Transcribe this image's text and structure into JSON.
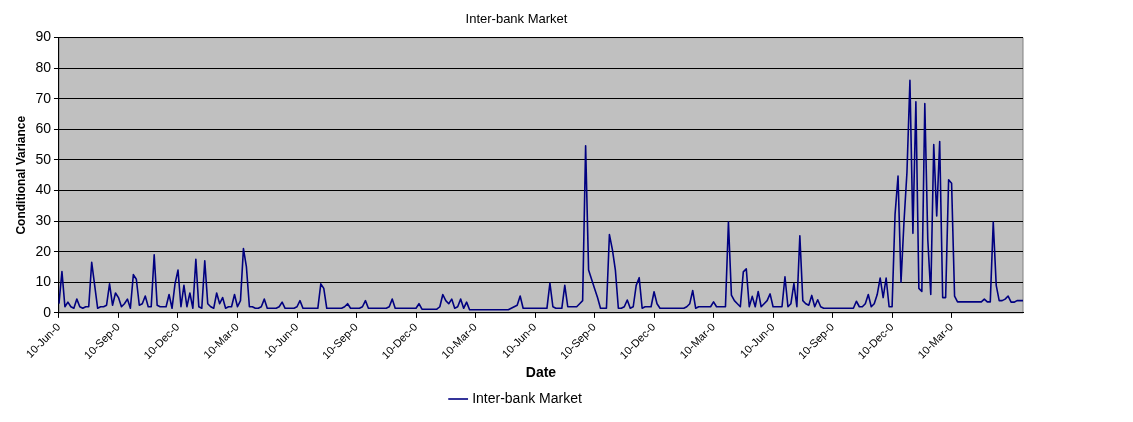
{
  "chart_data": {
    "type": "line",
    "title": "Inter-bank Market",
    "xlabel": "Date",
    "ylabel": "Conditional Variance",
    "categories": [
      "10-Jun-0",
      null,
      null,
      null,
      null,
      null,
      null,
      null,
      null,
      null,
      null,
      null,
      null,
      null,
      null,
      null,
      null,
      null,
      null,
      null,
      "10-Sep-0",
      null,
      null,
      null,
      null,
      null,
      null,
      null,
      null,
      null,
      null,
      null,
      null,
      null,
      null,
      null,
      null,
      null,
      null,
      null,
      "10-Dec-0",
      null,
      null,
      null,
      null,
      null,
      null,
      null,
      null,
      null,
      null,
      null,
      null,
      null,
      null,
      null,
      null,
      null,
      null,
      null,
      "10-Mar-0",
      null,
      null,
      null,
      null,
      null,
      null,
      null,
      null,
      null,
      null,
      null,
      null,
      null,
      null,
      null,
      null,
      null,
      null,
      null,
      "10-Jun-0",
      null,
      null,
      null,
      null,
      null,
      null,
      null,
      null,
      null,
      null,
      null,
      null,
      null,
      null,
      null,
      null,
      null,
      null,
      null,
      "10-Sep-0",
      null,
      null,
      null,
      null,
      null,
      null,
      null,
      null,
      null,
      null,
      null,
      null,
      null,
      null,
      null,
      null,
      null,
      null,
      null,
      "10-Dec-0",
      null,
      null,
      null,
      null,
      null,
      null,
      null,
      null,
      null,
      null,
      null,
      null,
      null,
      null,
      null,
      null,
      null,
      null,
      null,
      "10-Mar-0",
      null,
      null,
      null,
      null,
      null,
      null,
      null,
      null,
      null,
      null,
      null,
      null,
      null,
      null,
      null,
      null,
      null,
      null,
      null,
      "10-Jun-0",
      null,
      null,
      null,
      null,
      null,
      null,
      null,
      null,
      null,
      null,
      null,
      null,
      null,
      null,
      null,
      null,
      null,
      null,
      null,
      "10-Sep-0",
      null,
      null,
      null,
      null,
      null,
      null,
      null,
      null,
      null,
      null,
      null,
      null,
      null,
      null,
      null,
      null,
      null,
      null,
      null,
      "10-Dec-0",
      null,
      null,
      null,
      null,
      null,
      null,
      null,
      null,
      null,
      null,
      null,
      null,
      null,
      null,
      null,
      null,
      null,
      null,
      null,
      "10-Mar-0",
      null,
      null,
      null,
      null,
      null,
      null,
      null,
      null,
      null,
      null,
      null,
      null,
      null,
      null,
      null,
      null,
      null,
      null,
      null,
      "10-Jun-0",
      null,
      null,
      null,
      null,
      null,
      null,
      null,
      null,
      null,
      null,
      null,
      null,
      null,
      null,
      null,
      null,
      null,
      null,
      null,
      "10-Sep-0",
      null,
      null,
      null,
      null,
      null,
      null,
      null,
      null,
      null,
      null,
      null,
      null,
      null,
      null,
      null,
      null,
      null,
      null,
      null,
      "10-Dec-0",
      null,
      null,
      null,
      null,
      null,
      null,
      null,
      null,
      null,
      null,
      null,
      null,
      null,
      null,
      null,
      null,
      null,
      null,
      null,
      "10-Mar-0",
      null,
      null,
      null,
      null,
      null,
      null,
      null,
      null,
      null,
      null,
      null,
      null,
      null,
      null,
      null,
      null,
      null,
      null,
      null,
      null,
      null,
      null,
      null,
      null
    ],
    "ylim": [
      0,
      90
    ],
    "yticks": [
      0,
      10,
      20,
      30,
      40,
      50,
      60,
      70,
      80,
      90
    ],
    "grid": "y",
    "legend": "bottom",
    "marker": "none",
    "line_style": "solid",
    "series": [
      {
        "name": "Inter-bank Market",
        "color": "#000080",
        "values": [
          3,
          13.5,
          2,
          3.5,
          2,
          1.5,
          4.5,
          2,
          1.5,
          2,
          2,
          16.5,
          9,
          1.5,
          2,
          2,
          2.5,
          9.5,
          2.5,
          6.5,
          5,
          2,
          3,
          4.5,
          1.5,
          12.5,
          11,
          2.5,
          3,
          5.5,
          2,
          2,
          19,
          2.5,
          2,
          2,
          2,
          6,
          1.5,
          9.5,
          14,
          2,
          9,
          2,
          6.5,
          1.5,
          17.5,
          2,
          1.5,
          17,
          3,
          2,
          1.5,
          6.5,
          3,
          5,
          1.5,
          2,
          2,
          6,
          2,
          4,
          21,
          15,
          2,
          2,
          1.5,
          1.5,
          2,
          4.5,
          1.5,
          1.5,
          1.5,
          1.5,
          2,
          3.5,
          1.5,
          1.5,
          1.5,
          1.5,
          2,
          4,
          1.5,
          1.5,
          1.5,
          1.5,
          1.5,
          1.5,
          9.5,
          8,
          1.5,
          1.5,
          1.5,
          1.5,
          1.5,
          1.5,
          2,
          3,
          1.5,
          1.5,
          1.5,
          1.5,
          2,
          4,
          1.5,
          1.5,
          1.5,
          1.5,
          1.5,
          1.5,
          1.5,
          2,
          4.5,
          1.5,
          1.5,
          1.5,
          1.5,
          1.5,
          1.5,
          1.5,
          1.5,
          3,
          1.2,
          1.2,
          1.2,
          1.2,
          1.2,
          1.2,
          2,
          6,
          4,
          3,
          4.5,
          1.5,
          2,
          4.5,
          1.5,
          3.5,
          1,
          1,
          1,
          1,
          1,
          1,
          1,
          1,
          1,
          1,
          1,
          1,
          1,
          1,
          1.5,
          2,
          2.5,
          5.5,
          1.5,
          1.5,
          1.5,
          1.5,
          1.5,
          1.5,
          1.5,
          1.5,
          1.5,
          9.7,
          2,
          1.5,
          1.5,
          1.5,
          9,
          2,
          2,
          2,
          2,
          3,
          4,
          54.6,
          14,
          11,
          8,
          5,
          1.5,
          1.5,
          1.5,
          25.6,
          20.7,
          14,
          1.5,
          1.5,
          2,
          4.2,
          1.5,
          2,
          9,
          11.5,
          1.5,
          2,
          2,
          2,
          6.9,
          3,
          1.5,
          1.5,
          1.5,
          1.5,
          1.5,
          1.5,
          1.5,
          1.5,
          1.5,
          2,
          3,
          7.3,
          1.5,
          2,
          2,
          2,
          2,
          2,
          3.6,
          2,
          2,
          2,
          2,
          29.7,
          5.8,
          4,
          3,
          2,
          13.4,
          14.4,
          2,
          5.4,
          2,
          7,
          2,
          3,
          4,
          6.2,
          2,
          2,
          2,
          2,
          11.8,
          2,
          3,
          9.6,
          2,
          25.2,
          4,
          3,
          2.5,
          5.7,
          2,
          4.3,
          2,
          1.5,
          1.5,
          1.5,
          1.5,
          1.5,
          1.5,
          1.5,
          1.5,
          1.5,
          1.5,
          1.5,
          3.8,
          2,
          2,
          3,
          6,
          2,
          3,
          6,
          11.4,
          5,
          11.4,
          2,
          2,
          32.2,
          44.7,
          10,
          29.7,
          46,
          76,
          26,
          69,
          8,
          7,
          68.4,
          24,
          6,
          55,
          31.7,
          56,
          5,
          5,
          43.5,
          42.4,
          5.5,
          3.6,
          3.6,
          3.6,
          3.6,
          3.6,
          3.6,
          3.6,
          3.6,
          3.6,
          4.5,
          3.6,
          3.6,
          29.7,
          9,
          4,
          4,
          4.5,
          5.5,
          3.5,
          3.5,
          4,
          4,
          4
        ]
      }
    ]
  }
}
